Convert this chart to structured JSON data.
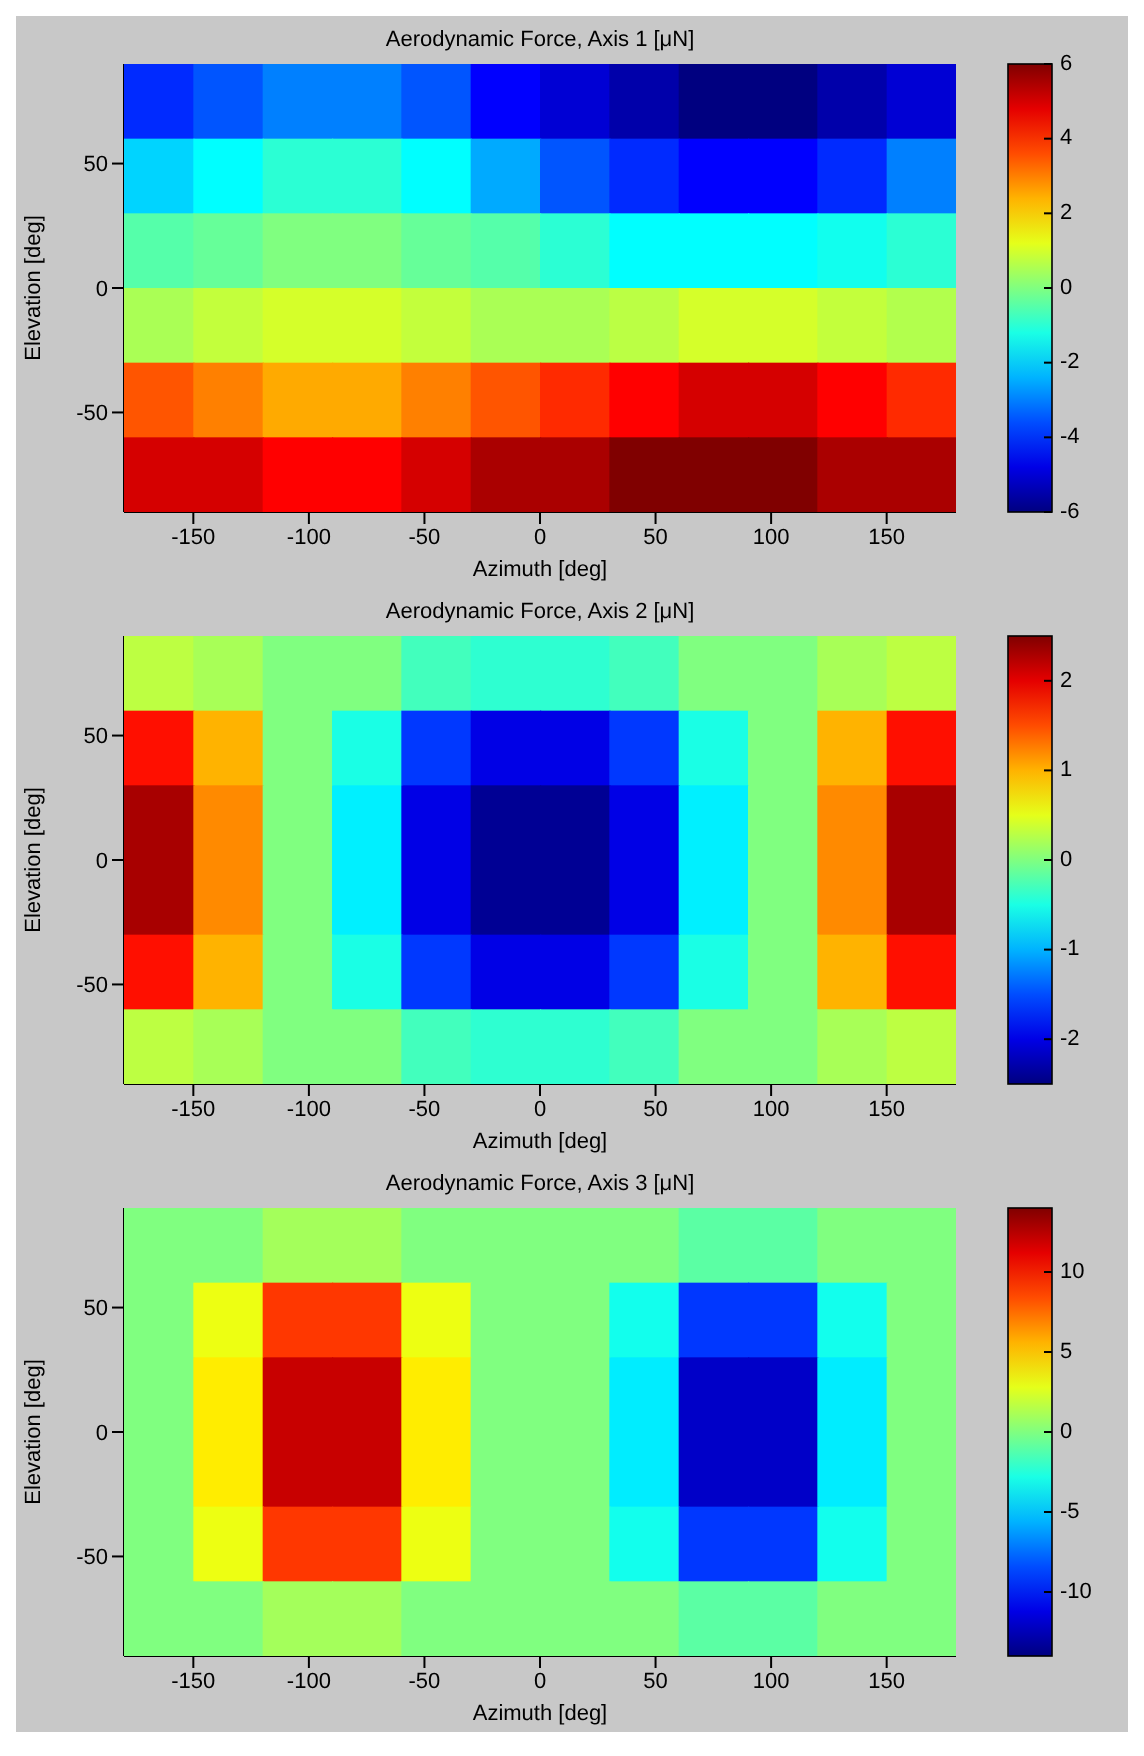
{
  "chart_data": [
    {
      "type": "heatmap",
      "title": "Aerodynamic Force, Axis 1 [μN]",
      "xlabel": "Azimuth [deg]",
      "ylabel": "Elevation [deg]",
      "x": [
        -165,
        -135,
        -105,
        -75,
        -45,
        -15,
        15,
        45,
        75,
        105,
        135,
        165
      ],
      "y": [
        75,
        45,
        15,
        -15,
        -45,
        -75
      ],
      "xlim": [
        -180,
        180
      ],
      "ylim": [
        -90,
        90
      ],
      "xticks": [
        -150,
        -100,
        -50,
        0,
        50,
        100,
        150
      ],
      "yticks": [
        -50,
        0,
        50
      ],
      "clim": [
        -6,
        6
      ],
      "cticks": [
        -6,
        -4,
        -2,
        0,
        2,
        4,
        6
      ],
      "cells": [
        [
          -4,
          -3.5,
          -3,
          -3,
          -3.5,
          -4.5,
          -5,
          -5.5,
          -6,
          -6,
          -5.5,
          -5
        ],
        [
          -2,
          -1.5,
          -1,
          -1,
          -1.5,
          -2.5,
          -3.5,
          -4,
          -4.5,
          -4.5,
          -4,
          -3
        ],
        [
          -0.5,
          -0.3,
          0,
          0,
          -0.3,
          -0.5,
          -1,
          -1.5,
          -1.5,
          -1.5,
          -1.3,
          -1
        ],
        [
          0.5,
          0.8,
          1,
          1,
          0.8,
          0.5,
          0.5,
          0.7,
          1,
          1,
          0.8,
          0.6
        ],
        [
          3.5,
          3,
          2.5,
          2.5,
          3,
          3.5,
          4,
          4.5,
          5,
          5,
          4.5,
          4
        ],
        [
          5,
          5,
          4.5,
          4.5,
          5,
          5.5,
          5.5,
          6,
          6,
          6,
          5.5,
          5.5
        ]
      ]
    },
    {
      "type": "heatmap",
      "title": "Aerodynamic Force, Axis 2 [μN]",
      "xlabel": "Azimuth [deg]",
      "ylabel": "Elevation [deg]",
      "x": [
        -165,
        -135,
        -105,
        -75,
        -45,
        -15,
        15,
        45,
        75,
        105,
        135,
        165
      ],
      "y": [
        75,
        45,
        15,
        -15,
        -45,
        -75
      ],
      "xlim": [
        -180,
        180
      ],
      "ylim": [
        -90,
        90
      ],
      "xticks": [
        -150,
        -100,
        -50,
        0,
        50,
        100,
        150
      ],
      "yticks": [
        -50,
        0,
        50
      ],
      "clim": [
        -2.5,
        2.5
      ],
      "cticks": [
        -2,
        -1,
        0,
        1,
        2
      ],
      "cells": [
        [
          0.3,
          0.2,
          0,
          0,
          -0.3,
          -0.4,
          -0.4,
          -0.3,
          0,
          0,
          0.2,
          0.3
        ],
        [
          1.8,
          1,
          0,
          -0.5,
          -1.6,
          -2,
          -2,
          -1.6,
          -0.5,
          0,
          1,
          1.8
        ],
        [
          2.3,
          1.2,
          0,
          -0.7,
          -2,
          -2.4,
          -2.4,
          -2,
          -0.7,
          0,
          1.2,
          2.3
        ],
        [
          2.3,
          1.2,
          0,
          -0.7,
          -2,
          -2.4,
          -2.4,
          -2,
          -0.7,
          0,
          1.2,
          2.3
        ],
        [
          1.8,
          1,
          0,
          -0.5,
          -1.6,
          -2,
          -2,
          -1.6,
          -0.5,
          0,
          1,
          1.8
        ],
        [
          0.3,
          0.2,
          0,
          0,
          -0.3,
          -0.4,
          -0.4,
          -0.3,
          0,
          0,
          0.2,
          0.3
        ]
      ]
    },
    {
      "type": "heatmap",
      "title": "Aerodynamic Force, Axis 3 [μN]",
      "xlabel": "Azimuth [deg]",
      "ylabel": "Elevation [deg]",
      "x": [
        -165,
        -135,
        -105,
        -75,
        -45,
        -15,
        15,
        45,
        75,
        105,
        135,
        165
      ],
      "y": [
        75,
        45,
        15,
        -15,
        -45,
        -75
      ],
      "xlim": [
        -180,
        180
      ],
      "ylim": [
        -90,
        90
      ],
      "xticks": [
        -150,
        -100,
        -50,
        0,
        50,
        100,
        150
      ],
      "yticks": [
        -50,
        0,
        50
      ],
      "clim": [
        -14,
        14
      ],
      "cticks": [
        -10,
        -5,
        0,
        5,
        10
      ],
      "cells": [
        [
          0,
          0,
          1,
          1,
          0,
          0,
          0,
          0,
          -1,
          -1,
          0,
          0
        ],
        [
          0,
          3,
          9,
          9,
          3,
          0,
          0,
          -3,
          -9,
          -9,
          -3,
          0
        ],
        [
          0,
          4,
          12,
          12,
          4,
          0,
          0,
          -4,
          -12,
          -12,
          -4,
          0
        ],
        [
          0,
          4,
          12,
          12,
          4,
          0,
          0,
          -4,
          -12,
          -12,
          -4,
          0
        ],
        [
          0,
          3,
          9,
          9,
          3,
          0,
          0,
          -3,
          -9,
          -9,
          -3,
          0
        ],
        [
          0,
          0,
          1,
          1,
          0,
          0,
          0,
          0,
          -1,
          -1,
          0,
          0
        ]
      ]
    }
  ]
}
